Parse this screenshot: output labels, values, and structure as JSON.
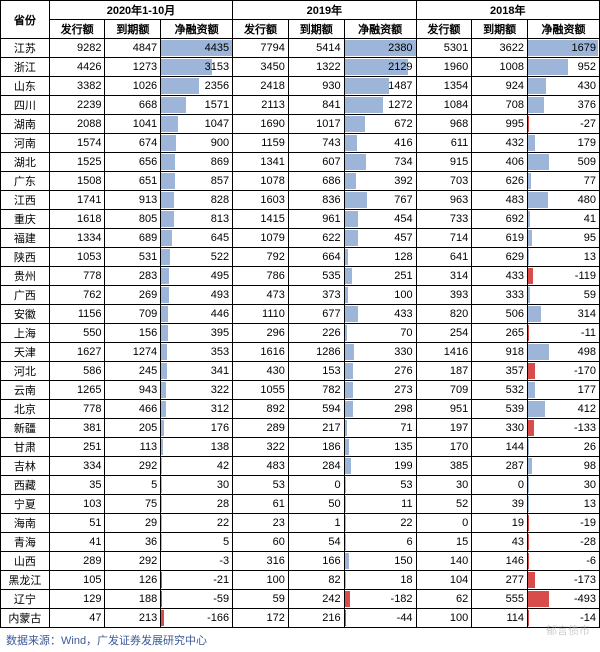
{
  "headers": {
    "province": "省份",
    "periods": [
      "2020年1-10月",
      "2019年",
      "2018年"
    ],
    "cols": [
      "发行额",
      "到期额",
      "净融资额"
    ]
  },
  "style": {
    "bar_color_pos": "#9cb5d9",
    "bar_color_neg": "#d94c4c",
    "max_2020": 4435,
    "max_2019": 2380,
    "max_2018": 1700
  },
  "rows": [
    {
      "p": "江苏",
      "d": [
        9282,
        4847,
        4435,
        7794,
        5414,
        2380,
        5301,
        3622,
        1679
      ]
    },
    {
      "p": "浙江",
      "d": [
        4426,
        1273,
        3153,
        3450,
        1322,
        2129,
        1960,
        1008,
        952
      ]
    },
    {
      "p": "山东",
      "d": [
        3382,
        1026,
        2356,
        2418,
        930,
        1487,
        1354,
        924,
        430
      ]
    },
    {
      "p": "四川",
      "d": [
        2239,
        668,
        1571,
        2113,
        841,
        1272,
        1084,
        708,
        376
      ]
    },
    {
      "p": "湖南",
      "d": [
        2088,
        1041,
        1047,
        1690,
        1017,
        672,
        968,
        995,
        -27
      ]
    },
    {
      "p": "河南",
      "d": [
        1574,
        674,
        900,
        1159,
        743,
        416,
        611,
        432,
        179
      ]
    },
    {
      "p": "湖北",
      "d": [
        1525,
        656,
        869,
        1341,
        607,
        734,
        915,
        406,
        509
      ]
    },
    {
      "p": "广东",
      "d": [
        1508,
        651,
        857,
        1078,
        686,
        392,
        703,
        626,
        77
      ]
    },
    {
      "p": "江西",
      "d": [
        1741,
        913,
        828,
        1603,
        836,
        767,
        963,
        483,
        480
      ]
    },
    {
      "p": "重庆",
      "d": [
        1618,
        805,
        813,
        1415,
        961,
        454,
        733,
        692,
        41
      ]
    },
    {
      "p": "福建",
      "d": [
        1334,
        689,
        645,
        1079,
        622,
        457,
        714,
        619,
        95
      ]
    },
    {
      "p": "陕西",
      "d": [
        1053,
        531,
        522,
        792,
        664,
        128,
        641,
        629,
        13
      ]
    },
    {
      "p": "贵州",
      "d": [
        778,
        283,
        495,
        786,
        535,
        251,
        314,
        433,
        -119
      ]
    },
    {
      "p": "广西",
      "d": [
        762,
        269,
        493,
        473,
        373,
        100,
        393,
        333,
        59
      ]
    },
    {
      "p": "安徽",
      "d": [
        1156,
        709,
        446,
        1110,
        677,
        433,
        820,
        506,
        314
      ]
    },
    {
      "p": "上海",
      "d": [
        550,
        156,
        395,
        296,
        226,
        70,
        254,
        265,
        -11
      ]
    },
    {
      "p": "天津",
      "d": [
        1627,
        1274,
        353,
        1616,
        1286,
        330,
        1416,
        918,
        498
      ]
    },
    {
      "p": "河北",
      "d": [
        586,
        245,
        341,
        430,
        153,
        276,
        187,
        357,
        -170
      ]
    },
    {
      "p": "云南",
      "d": [
        1265,
        943,
        322,
        1055,
        782,
        273,
        709,
        532,
        177
      ]
    },
    {
      "p": "北京",
      "d": [
        778,
        466,
        312,
        892,
        594,
        298,
        951,
        539,
        412
      ]
    },
    {
      "p": "新疆",
      "d": [
        381,
        205,
        176,
        289,
        217,
        71,
        197,
        330,
        -133
      ]
    },
    {
      "p": "甘肃",
      "d": [
        251,
        113,
        138,
        322,
        186,
        135,
        170,
        144,
        26
      ]
    },
    {
      "p": "吉林",
      "d": [
        334,
        292,
        42,
        483,
        284,
        199,
        385,
        287,
        98
      ]
    },
    {
      "p": "西藏",
      "d": [
        35,
        5,
        30,
        53,
        0,
        53,
        30,
        0,
        30
      ]
    },
    {
      "p": "宁夏",
      "d": [
        103,
        75,
        28,
        61,
        50,
        11,
        52,
        39,
        13
      ]
    },
    {
      "p": "海南",
      "d": [
        51,
        29,
        22,
        23,
        1,
        22,
        0,
        19,
        -19
      ]
    },
    {
      "p": "青海",
      "d": [
        41,
        36,
        5,
        60,
        54,
        6,
        15,
        43,
        -28
      ]
    },
    {
      "p": "山西",
      "d": [
        289,
        292,
        -3,
        316,
        166,
        150,
        140,
        146,
        -6
      ]
    },
    {
      "p": "黑龙江",
      "d": [
        105,
        126,
        -21,
        100,
        82,
        18,
        104,
        277,
        -173
      ]
    },
    {
      "p": "辽宁",
      "d": [
        129,
        188,
        -59,
        59,
        242,
        -182,
        62,
        555,
        -493
      ]
    },
    {
      "p": "内蒙古",
      "d": [
        47,
        213,
        -166,
        172,
        216,
        -44,
        100,
        114,
        -14
      ]
    }
  ],
  "footer": "数据来源：Wind，广发证券发展研究中心",
  "watermark": "郁言债市"
}
